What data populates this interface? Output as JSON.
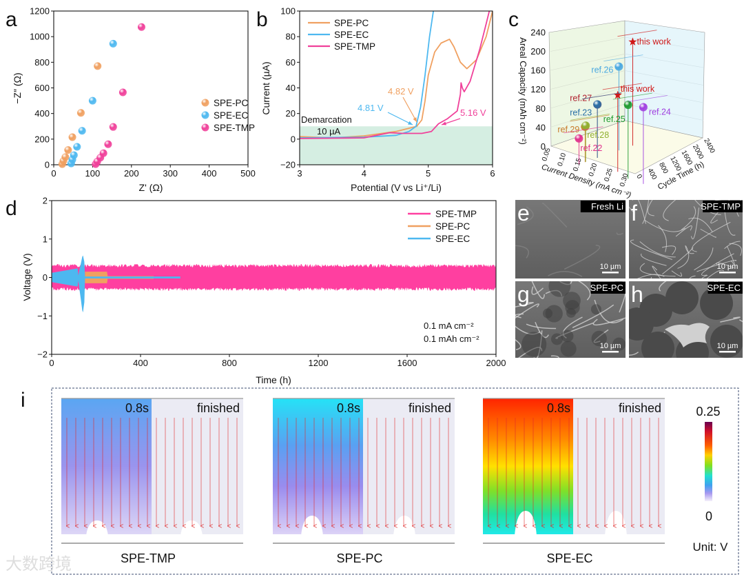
{
  "figure": {
    "panel_labels": {
      "a": "a",
      "b": "b",
      "c": "c",
      "d": "d",
      "e": "e",
      "f": "f",
      "g": "g",
      "h": "h",
      "i": "i"
    },
    "watermark": "大数跨境"
  },
  "chart_data": [
    {
      "panel": "a",
      "type": "scatter",
      "xlabel": "Z' (Ω)",
      "ylabel": "−Z″ (Ω)",
      "xlim": [
        0,
        500
      ],
      "ylim": [
        0,
        1200
      ],
      "xticks": [
        0,
        100,
        200,
        300,
        400,
        500
      ],
      "yticks": [
        0,
        200,
        400,
        600,
        800,
        1000,
        1200
      ],
      "legend_position": "center-right",
      "series": [
        {
          "name": "SPE-PC",
          "color": "#f0a060",
          "x": [
            22,
            25,
            30,
            37,
            48,
            70,
            113
          ],
          "y": [
            5,
            30,
            60,
            115,
            215,
            405,
            770
          ]
        },
        {
          "name": "SPE-EC",
          "color": "#4db8f0",
          "x": [
            45,
            48,
            52,
            60,
            73,
            100,
            153
          ],
          "y": [
            10,
            40,
            75,
            140,
            265,
            500,
            945
          ]
        },
        {
          "name": "SPE-TMP",
          "color": "#f0409a",
          "x": [
            108,
            112,
            120,
            128,
            140,
            153,
            178,
            226
          ],
          "y": [
            5,
            25,
            55,
            90,
            160,
            295,
            565,
            1075
          ]
        }
      ]
    },
    {
      "panel": "b",
      "type": "line",
      "xlabel": "Potential (V vs Li⁺/Li)",
      "ylabel": "Current (µA)",
      "xlim": [
        3,
        6
      ],
      "ylim": [
        -20,
        100
      ],
      "xticks": [
        3,
        4,
        5,
        6
      ],
      "yticks": [
        -20,
        0,
        20,
        40,
        60,
        80,
        100
      ],
      "legend_position": "top-left",
      "threshold": {
        "value": 10,
        "label_1": "Demarcation",
        "label_2": "10 µA",
        "color": "#d5eee2"
      },
      "annotations": [
        {
          "text": "4.82 V",
          "x": 4.82,
          "y": 10,
          "color": "#f0a060"
        },
        {
          "text": "4.81 V",
          "x": 4.81,
          "y": 10,
          "color": "#4db8f0"
        },
        {
          "text": "5.16 V",
          "x": 5.16,
          "y": 10,
          "color": "#f0409a"
        }
      ],
      "series": [
        {
          "name": "SPE-PC",
          "color": "#f0a060",
          "x": [
            3,
            3.5,
            4,
            4.5,
            4.82,
            4.9,
            4.95,
            5.0,
            5.1,
            5.2,
            5.33,
            5.4,
            5.5,
            5.6,
            5.75,
            5.9,
            6.0
          ],
          "y": [
            2,
            1,
            2.5,
            6,
            10,
            15,
            30,
            50,
            68,
            75,
            78,
            72,
            60,
            55,
            62,
            80,
            100
          ]
        },
        {
          "name": "SPE-EC",
          "color": "#4db8f0",
          "x": [
            3,
            4,
            4.5,
            4.7,
            4.81,
            4.88,
            4.95,
            5.02,
            5.08
          ],
          "y": [
            1,
            1.5,
            3,
            6,
            10,
            25,
            50,
            80,
            100
          ]
        },
        {
          "name": "SPE-TMP",
          "color": "#f0409a",
          "x": [
            3,
            4,
            4.4,
            4.6,
            4.9,
            5.05,
            5.16,
            5.3,
            5.45,
            5.5,
            5.51,
            5.53,
            5.56,
            5.65,
            5.8,
            5.9,
            5.95
          ],
          "y": [
            0.5,
            1,
            5,
            4.5,
            4.5,
            6,
            12,
            16,
            22,
            35,
            44,
            40,
            37,
            45,
            70,
            90,
            100
          ]
        }
      ]
    },
    {
      "panel": "c",
      "type": "scatter3d",
      "xlabel": "Current Density (mA cm⁻²)",
      "ylabel": "Cycle Time (h)",
      "zlabel": "Areal Capacity (mAh cm⁻²)",
      "xlim": [
        0.05,
        0.32
      ],
      "ylim": [
        0,
        2400
      ],
      "zlim": [
        0,
        240
      ],
      "xticks": [
        "0.05",
        "0.10",
        "0.15",
        "0.20",
        "0.25",
        "0.30"
      ],
      "yticks": [
        "0",
        "400",
        "800",
        "1200",
        "1600",
        "2000",
        "2400"
      ],
      "zticks": [
        "0",
        "40",
        "80",
        "120",
        "160",
        "200",
        "240"
      ],
      "points": [
        {
          "label": "this work",
          "x": 0.1,
          "y": 2150,
          "z": 182,
          "color": "#d01818",
          "marker": "star"
        },
        {
          "label": "ref.26",
          "x": 0.1,
          "y": 1700,
          "z": 140,
          "color": "#4aa8e0",
          "marker": "sphere"
        },
        {
          "label": "this work",
          "x": 0.2,
          "y": 650,
          "z": 125,
          "color": "#d01818",
          "marker": "star"
        },
        {
          "label": "ref.27",
          "x": 0.1,
          "y": 1000,
          "z": 76,
          "color": "#b0202e",
          "marker": "sphere"
        },
        {
          "label": "ref.23",
          "x": 0.1,
          "y": 1000,
          "z": 76,
          "color": "#2a6fa6",
          "marker": "sphere"
        },
        {
          "label": "ref.25",
          "x": 0.25,
          "y": 480,
          "z": 119,
          "color": "#1f9a2f",
          "marker": "sphere"
        },
        {
          "label": "ref.24",
          "x": 0.3,
          "y": 470,
          "z": 125,
          "color": "#a040e0",
          "marker": "sphere"
        },
        {
          "label": "ref.29",
          "x": 0.1,
          "y": 600,
          "z": 38,
          "color": "#c87a2a",
          "marker": "sphere"
        },
        {
          "label": "ref.28",
          "x": 0.1,
          "y": 620,
          "z": 40,
          "color": "#90b030",
          "marker": "sphere"
        },
        {
          "label": "ref.22",
          "x": 0.1,
          "y": 400,
          "z": 18,
          "color": "#e0308c",
          "marker": "sphere"
        }
      ]
    },
    {
      "panel": "d",
      "type": "line",
      "xlabel": "Time (h)",
      "ylabel": "Voltage (V)",
      "xlim": [
        0,
        2000
      ],
      "ylim": [
        -2,
        2
      ],
      "xticks": [
        0,
        400,
        800,
        1200,
        1600,
        2000
      ],
      "yticks": [
        -2,
        -1,
        0,
        1,
        2
      ],
      "legend_position": "top-right",
      "annotations": [
        "0.1 mA cm⁻²",
        "0.1 mAh cm⁻²"
      ],
      "series": [
        {
          "name": "SPE-TMP",
          "color": "#ff3fa0",
          "end_h": 2000,
          "amplitude_V": 0.3
        },
        {
          "name": "SPE-PC",
          "color": "#f0a060",
          "end_h": 460,
          "amplitude_V": 0.15
        },
        {
          "name": "SPE-EC",
          "color": "#4db8f0",
          "end_h": 580,
          "amplitude_V": 0.15,
          "spike_h": 140,
          "spike_max_V": 0.6,
          "spike_min_V": -0.95
        }
      ]
    }
  ],
  "sem_images": [
    {
      "letter": "e",
      "title": "Fresh Li",
      "scale": "10 µm"
    },
    {
      "letter": "f",
      "title": "SPE-TMP",
      "scale": "10 µm"
    },
    {
      "letter": "g",
      "title": "SPE-PC",
      "scale": "10 µm"
    },
    {
      "letter": "h",
      "title": "SPE-EC",
      "scale": "10 µm"
    }
  ],
  "simulation": {
    "panels": [
      {
        "name": "SPE-TMP",
        "time_label": "0.8s",
        "end_label": "finished"
      },
      {
        "name": "SPE-PC",
        "time_label": "0.8s",
        "end_label": "finished"
      },
      {
        "name": "SPE-EC",
        "time_label": "0.8s",
        "end_label": "finished"
      }
    ],
    "colorbar": {
      "max": "0.25",
      "min": "0",
      "unit": "Unit: V"
    }
  }
}
